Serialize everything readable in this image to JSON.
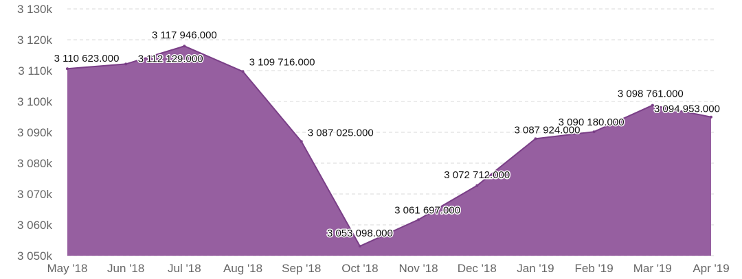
{
  "chart_data": {
    "type": "area",
    "title": "",
    "xlabel": "",
    "ylabel": "",
    "categories": [
      "May '18",
      "Jun '18",
      "Jul '18",
      "Aug '18",
      "Sep '18",
      "Oct '18",
      "Nov '18",
      "Dec '18",
      "Jan '19",
      "Feb '19",
      "Mar '19",
      "Apr '19"
    ],
    "series": [
      {
        "values": [
          3110623,
          3112129,
          3117946,
          3109716,
          3087025,
          3053098,
          3061697,
          3072712,
          3087924,
          3090180,
          3098761,
          3094953
        ],
        "labels": [
          "3 110 623.000",
          "3 112 129.000",
          "3 117 946.000",
          "3 109 716.000",
          "3 087 025.000",
          "3 053 098.000",
          "3 061 697.000",
          "3 072 712.000",
          "3 087 924.000",
          "3 090 180.000",
          "3 098 761.000",
          "3 094 953.000"
        ]
      }
    ],
    "ylim": [
      3050000,
      3130000
    ],
    "y_ticks": [
      3050000,
      3060000,
      3070000,
      3080000,
      3090000,
      3100000,
      3110000,
      3120000,
      3130000
    ],
    "y_tick_labels": [
      "3 050k",
      "3 060k",
      "3 070k",
      "3 080k",
      "3 090k",
      "3 100k",
      "3 110k",
      "3 120k",
      "3 130k"
    ],
    "grid": true,
    "legend": "none",
    "colors": {
      "fill": "#965fa0",
      "line": "#7a3f87",
      "grid": "#d9d9d9",
      "axis_text": "#666666",
      "label_text": "#111111"
    }
  }
}
